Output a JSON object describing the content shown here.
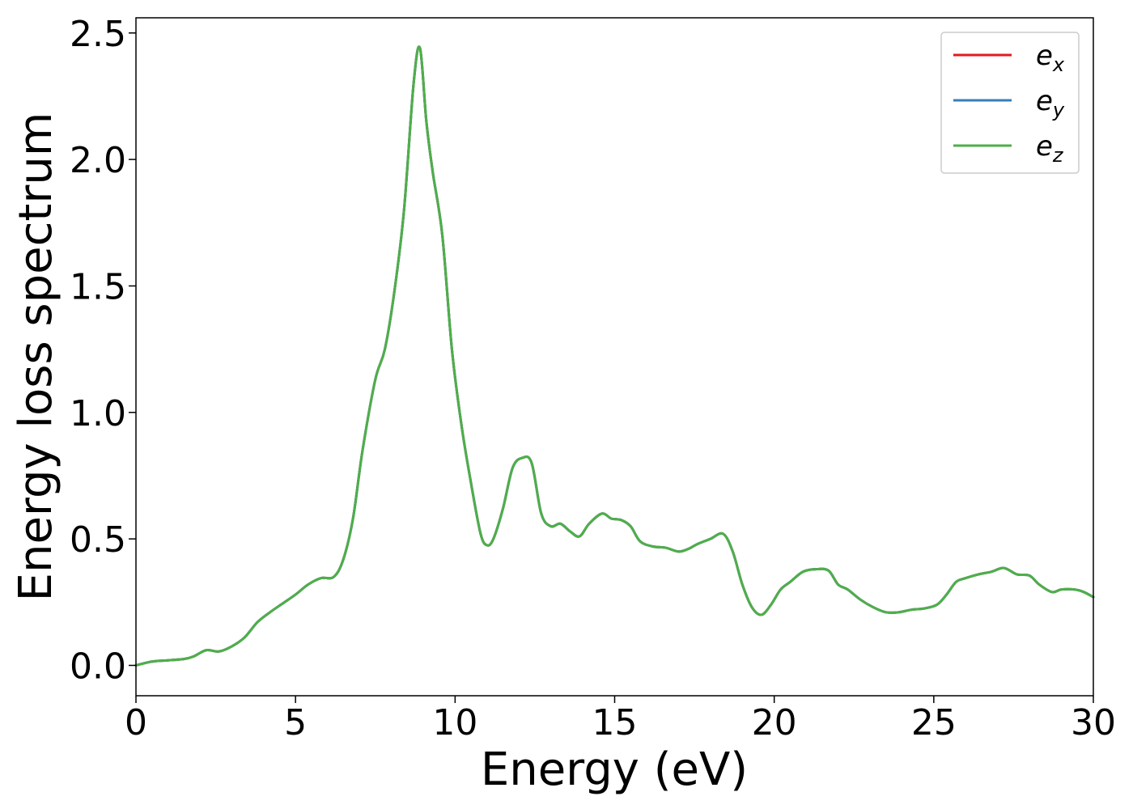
{
  "chart_data": {
    "type": "line",
    "xlabel": "Energy (eV)",
    "ylabel": "Energy loss spectrum",
    "xlim": [
      0,
      30
    ],
    "ylim": [
      -0.12,
      2.56
    ],
    "x_ticks": [
      0,
      5,
      10,
      15,
      20,
      25,
      30
    ],
    "x_tick_labels": [
      "0",
      "5",
      "10",
      "15",
      "20",
      "25",
      "30"
    ],
    "y_ticks": [
      0.0,
      0.5,
      1.0,
      1.5,
      2.0,
      2.5
    ],
    "y_tick_labels": [
      "0.0",
      "0.5",
      "1.0",
      "1.5",
      "2.0",
      "2.5"
    ],
    "grid": false,
    "legend_position": "top-right",
    "x": [
      0,
      0.5,
      1.0,
      1.5,
      1.8,
      2.2,
      2.6,
      3.0,
      3.4,
      3.8,
      4.2,
      4.6,
      5.0,
      5.4,
      5.8,
      6.2,
      6.5,
      6.8,
      7.1,
      7.5,
      7.8,
      8.1,
      8.4,
      8.7,
      8.9,
      9.1,
      9.3,
      9.6,
      9.9,
      10.2,
      10.5,
      10.8,
      11.0,
      11.2,
      11.5,
      11.8,
      12.1,
      12.4,
      12.7,
      13.0,
      13.3,
      13.6,
      13.9,
      14.2,
      14.6,
      14.9,
      15.2,
      15.5,
      15.8,
      16.2,
      16.6,
      17.0,
      17.3,
      17.6,
      18.0,
      18.4,
      18.7,
      19.0,
      19.3,
      19.6,
      19.9,
      20.2,
      20.5,
      20.9,
      21.3,
      21.7,
      22.0,
      22.3,
      22.7,
      23.1,
      23.5,
      23.9,
      24.3,
      24.7,
      25.1,
      25.4,
      25.7,
      26.0,
      26.4,
      26.8,
      27.2,
      27.6,
      28.0,
      28.3,
      28.7,
      29.0,
      29.4,
      29.7,
      30.0
    ],
    "series": [
      {
        "name": "e_x",
        "label_main": "e",
        "label_sub": "x",
        "color": "#e31a1c",
        "values": [
          0.0,
          0.015,
          0.02,
          0.025,
          0.035,
          0.06,
          0.055,
          0.075,
          0.11,
          0.17,
          0.21,
          0.245,
          0.28,
          0.32,
          0.345,
          0.35,
          0.42,
          0.58,
          0.85,
          1.13,
          1.25,
          1.48,
          1.8,
          2.3,
          2.44,
          2.15,
          1.95,
          1.7,
          1.25,
          0.95,
          0.72,
          0.52,
          0.475,
          0.5,
          0.62,
          0.78,
          0.82,
          0.8,
          0.6,
          0.55,
          0.56,
          0.53,
          0.51,
          0.56,
          0.6,
          0.58,
          0.575,
          0.55,
          0.49,
          0.47,
          0.465,
          0.45,
          0.46,
          0.48,
          0.5,
          0.52,
          0.45,
          0.32,
          0.23,
          0.2,
          0.24,
          0.3,
          0.33,
          0.37,
          0.38,
          0.375,
          0.32,
          0.3,
          0.26,
          0.23,
          0.21,
          0.21,
          0.22,
          0.225,
          0.24,
          0.28,
          0.33,
          0.345,
          0.36,
          0.37,
          0.385,
          0.36,
          0.355,
          0.32,
          0.29,
          0.3,
          0.3,
          0.29,
          0.27
        ]
      },
      {
        "name": "e_y",
        "label_main": "e",
        "label_sub": "y",
        "color": "#377eb8",
        "values": [
          0.0,
          0.015,
          0.02,
          0.025,
          0.035,
          0.06,
          0.055,
          0.075,
          0.11,
          0.17,
          0.21,
          0.245,
          0.28,
          0.32,
          0.345,
          0.35,
          0.42,
          0.58,
          0.85,
          1.13,
          1.25,
          1.48,
          1.8,
          2.3,
          2.44,
          2.15,
          1.95,
          1.7,
          1.25,
          0.95,
          0.72,
          0.52,
          0.475,
          0.5,
          0.62,
          0.78,
          0.82,
          0.8,
          0.6,
          0.55,
          0.56,
          0.53,
          0.51,
          0.56,
          0.6,
          0.58,
          0.575,
          0.55,
          0.49,
          0.47,
          0.465,
          0.45,
          0.46,
          0.48,
          0.5,
          0.52,
          0.45,
          0.32,
          0.23,
          0.2,
          0.24,
          0.3,
          0.33,
          0.37,
          0.38,
          0.375,
          0.32,
          0.3,
          0.26,
          0.23,
          0.21,
          0.21,
          0.22,
          0.225,
          0.24,
          0.28,
          0.33,
          0.345,
          0.36,
          0.37,
          0.385,
          0.36,
          0.355,
          0.32,
          0.29,
          0.3,
          0.3,
          0.29,
          0.27
        ]
      },
      {
        "name": "e_z",
        "label_main": "e",
        "label_sub": "z",
        "color": "#4daf4a",
        "values": [
          0.0,
          0.015,
          0.02,
          0.025,
          0.035,
          0.06,
          0.055,
          0.075,
          0.11,
          0.17,
          0.21,
          0.245,
          0.28,
          0.32,
          0.345,
          0.35,
          0.42,
          0.58,
          0.85,
          1.13,
          1.25,
          1.48,
          1.8,
          2.3,
          2.44,
          2.15,
          1.95,
          1.7,
          1.25,
          0.95,
          0.72,
          0.52,
          0.475,
          0.5,
          0.62,
          0.78,
          0.82,
          0.8,
          0.6,
          0.55,
          0.56,
          0.53,
          0.51,
          0.56,
          0.6,
          0.58,
          0.575,
          0.55,
          0.49,
          0.47,
          0.465,
          0.45,
          0.46,
          0.48,
          0.5,
          0.52,
          0.45,
          0.32,
          0.23,
          0.2,
          0.24,
          0.3,
          0.33,
          0.37,
          0.38,
          0.375,
          0.32,
          0.3,
          0.26,
          0.23,
          0.21,
          0.21,
          0.22,
          0.225,
          0.24,
          0.28,
          0.33,
          0.345,
          0.36,
          0.37,
          0.385,
          0.36,
          0.355,
          0.32,
          0.29,
          0.3,
          0.3,
          0.29,
          0.27
        ]
      }
    ]
  }
}
